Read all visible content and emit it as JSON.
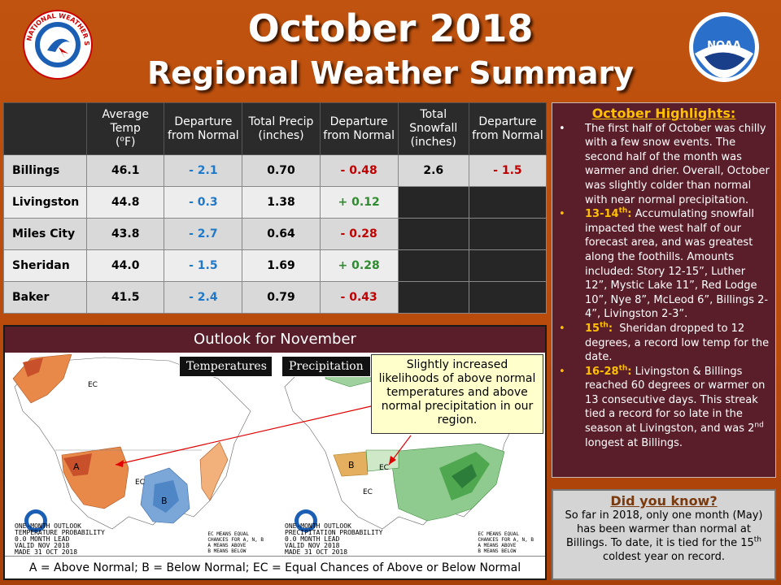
{
  "header": {
    "title_line1": "October 2018",
    "title_line2": "Regional Weather Summary",
    "left_logo_text": "NATIONAL WEATHER SERVICE",
    "right_logo_text": "NOAA"
  },
  "table": {
    "headers": [
      "",
      "Average Temp (°F)",
      "Departure from Normal",
      "Total Precip (inches)",
      "Departure from Normal",
      "Total Snowfall (inches)",
      "Departure from Normal"
    ],
    "rows": [
      {
        "city": "Billings",
        "avg_temp": "46.1",
        "temp_dep": "- 2.1",
        "precip": "0.70",
        "precip_dep": "- 0.48",
        "snow": "2.6",
        "snow_dep": "- 1.5"
      },
      {
        "city": "Livingston",
        "avg_temp": "44.8",
        "temp_dep": "- 0.3",
        "precip": "1.38",
        "precip_dep": "+ 0.12",
        "snow": "",
        "snow_dep": ""
      },
      {
        "city": "Miles City",
        "avg_temp": "43.8",
        "temp_dep": "- 2.7",
        "precip": "0.64",
        "precip_dep": "- 0.28",
        "snow": "",
        "snow_dep": ""
      },
      {
        "city": "Sheridan",
        "avg_temp": "44.0",
        "temp_dep": "- 1.5",
        "precip": "1.69",
        "precip_dep": "+ 0.28",
        "snow": "",
        "snow_dep": ""
      },
      {
        "city": "Baker",
        "avg_temp": "41.5",
        "temp_dep": "- 2.4",
        "precip": "0.79",
        "precip_dep": "- 0.43",
        "snow": "",
        "snow_dep": ""
      }
    ]
  },
  "outlook": {
    "title": "Outlook for November",
    "temp_label": "Temperatures",
    "precip_label": "Precipitation",
    "temp_caption": "ONE-MONTH OUTLOOK\nTEMPERATURE PROBABILITY\n0.0 MONTH LEAD\nVALID NOV 2018\nMADE 31 OCT 2018",
    "precip_caption": "ONE-MONTH OUTLOOK\nPRECIPITATION PROBABILITY\n0.0 MONTH LEAD\nVALID NOV 2018\nMADE 31 OCT 2018",
    "ec_caption_temp": "EC MEANS EQUAL\nCHANCES FOR A, N, B\nA MEANS ABOVE\nB MEANS BELOW",
    "ec_caption_precip": "EC MEANS EQUAL\nCHANCES FOR A, N, B\nA MEANS ABOVE\nB MEANS BELOW",
    "callout": "Slightly increased likelihoods of above normal temperatures and above normal precipitation in our region.",
    "legend": "A = Above Normal;  B = Below Normal;  EC = Equal Chances of Above or Below Normal"
  },
  "highlights": {
    "title": "October Highlights:",
    "items": [
      {
        "date": "",
        "date_sup": "",
        "text": "The first half of October was chilly with a few snow events. The second half of the month was warmer and drier. Overall, October was slightly colder than normal with near normal precipitation."
      },
      {
        "date": "13-14",
        "date_sup": "th",
        "text": "Accumulating snowfall impacted the west half of our forecast area, and was greatest along the foothills. Amounts included: Story 12-15”, Luther 12”, Mystic Lake 11”, Red Lodge 10”, Nye 8”, McLeod 6”, Billings 2-4”, Livingston 2-3”."
      },
      {
        "date": "15",
        "date_sup": "th",
        "text": "Sheridan dropped to 12 degrees, a record low temp for the date."
      },
      {
        "date": "16-28",
        "date_sup": "th",
        "text": "Livingston & Billings reached 60 degrees or warmer on 13 consecutive days. This streak tied a record for so late in the season at Livingston, and was 2"
      }
    ],
    "item4_sup": "nd",
    "item4_tail": " longest at Billings."
  },
  "did_you_know": {
    "title": "Did you know?",
    "text": "So far in 2018, only one month (May) has been warmer than normal at Billings. To date, it is tied for the 15",
    "sup": "th",
    "tail": " coldest year on record."
  },
  "colors": {
    "background": "#c0530f",
    "panel": "#5a1e2a",
    "accent_yellow": "#ffc000",
    "below_blue": "#1f78c8",
    "negative_red": "#c00000",
    "positive_green": "#2e8b2e"
  }
}
